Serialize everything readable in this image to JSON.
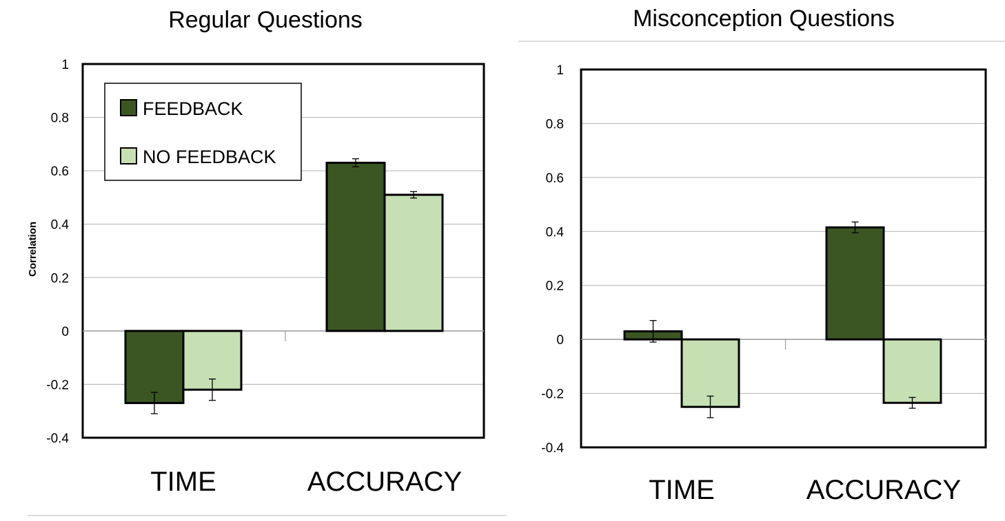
{
  "colors": {
    "feedback": "#3b5623",
    "no_feedback": "#c6e0b4",
    "grid": "#b0b0b0",
    "divider": "#d0d0d0"
  },
  "legend": {
    "feedback_label": "FEEDBACK",
    "no_feedback_label": "NO FEEDBACK"
  },
  "chart_data": [
    {
      "type": "bar",
      "title": "Regular Questions",
      "ylabel": "Correlation",
      "xlabel": "",
      "ylim": [
        -0.4,
        1
      ],
      "yticks": [
        "1",
        "0.8",
        "0.6",
        "0.4",
        "0.2",
        "0",
        "-0.2",
        "-0.4"
      ],
      "categories": [
        "TIME",
        "ACCURACY"
      ],
      "grid": true,
      "legend_position": "top-left",
      "series": [
        {
          "name": "FEEDBACK",
          "values": [
            -0.27,
            0.63
          ],
          "errors": [
            0.04,
            0.015
          ]
        },
        {
          "name": "NO FEEDBACK",
          "values": [
            -0.22,
            0.51
          ],
          "errors": [
            0.04,
            0.012
          ]
        }
      ]
    },
    {
      "type": "bar",
      "title": "Misconception Questions",
      "ylabel": "",
      "xlabel": "",
      "ylim": [
        -0.4,
        1
      ],
      "yticks": [
        "1",
        "0.8",
        "0.6",
        "0.4",
        "0.2",
        "0",
        "-0.2",
        "-0.4"
      ],
      "categories": [
        "TIME",
        "ACCURACY"
      ],
      "grid": true,
      "series": [
        {
          "name": "FEEDBACK",
          "values": [
            0.03,
            0.415
          ],
          "errors": [
            0.04,
            0.02
          ]
        },
        {
          "name": "NO FEEDBACK",
          "values": [
            -0.25,
            -0.235
          ],
          "errors": [
            0.04,
            0.02
          ]
        }
      ]
    }
  ]
}
